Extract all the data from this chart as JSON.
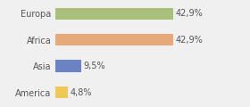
{
  "categories": [
    "America",
    "Asia",
    "Africa",
    "Europa"
  ],
  "values": [
    4.8,
    9.5,
    42.9,
    42.9
  ],
  "labels": [
    "4,8%",
    "9,5%",
    "42,9%",
    "42,9%"
  ],
  "bar_colors": [
    "#f0c855",
    "#6b82c4",
    "#e8a97a",
    "#a8c07a"
  ],
  "background_color": "#f0f0f0",
  "xlim": [
    0,
    60
  ],
  "bar_height": 0.45,
  "label_fontsize": 7.0,
  "tick_fontsize": 7.0,
  "text_color": "#555555"
}
